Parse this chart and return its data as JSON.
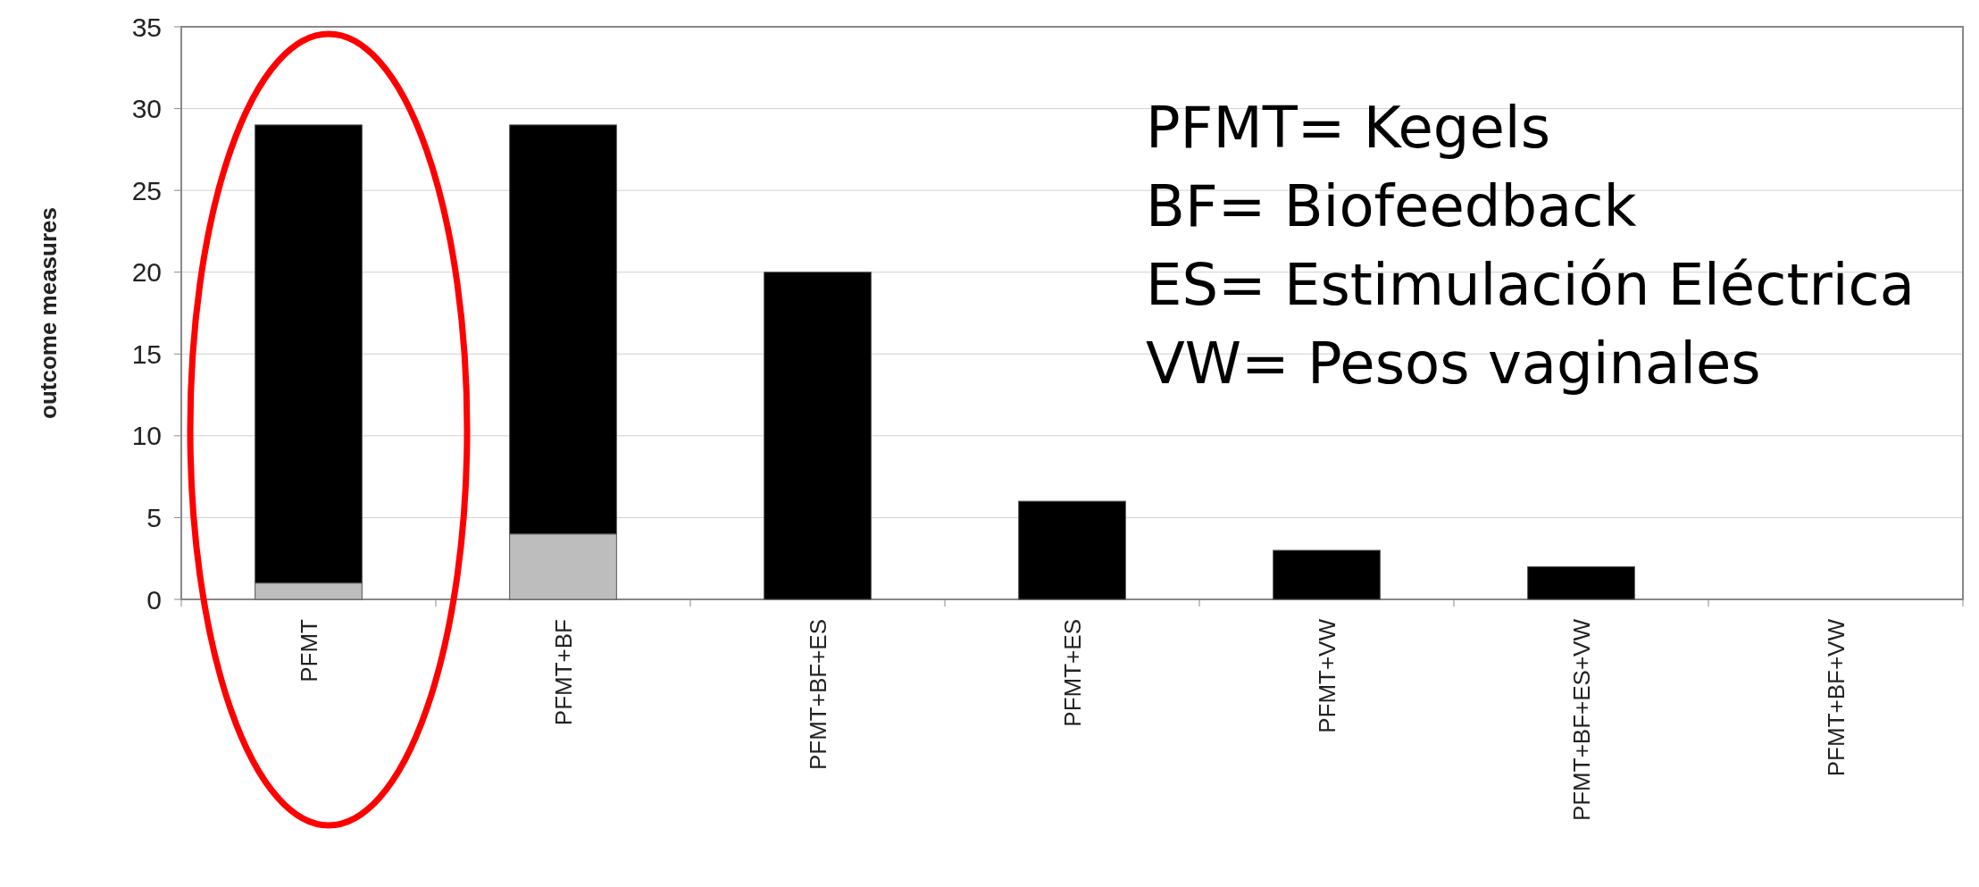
{
  "chart_data": {
    "type": "bar",
    "ylabel": "outcome measures",
    "categories": [
      "PFMT",
      "PFMT+BF",
      "PFMT+BF+ES",
      "PFMT+ES",
      "PFMT+VW",
      "PFMT+BF+ES+VW",
      "PFMT+BF+VW"
    ],
    "series": [
      {
        "color": "#bdbdbd",
        "values": [
          1,
          4,
          0,
          0,
          0,
          0,
          0
        ]
      },
      {
        "color": "#000000",
        "values": [
          28,
          25,
          20,
          6,
          3,
          2,
          0
        ]
      }
    ],
    "stacked": true,
    "ylim": [
      0,
      35
    ],
    "yticks": [
      0,
      5,
      10,
      15,
      20,
      25,
      30,
      35
    ],
    "grid": "y",
    "annotations": [
      "PFMT= Kegels",
      "BF= Biofeedback",
      "ES= Estimulación Eléctrica",
      "VW= Pesos vaginales"
    ]
  }
}
